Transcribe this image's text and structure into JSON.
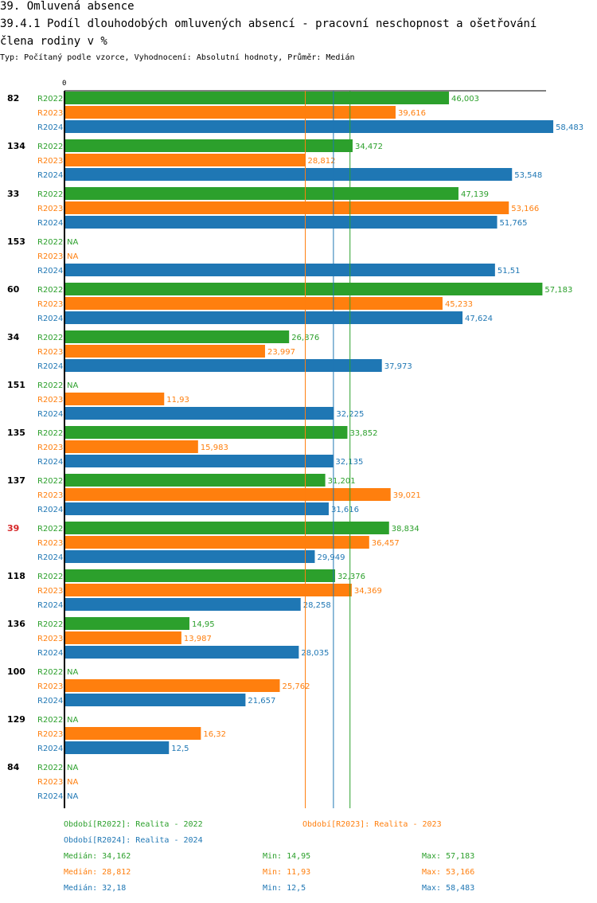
{
  "header": {
    "title1": "39. Omluvená absence",
    "title2": "39.4.1 Podíl dlouhodobých omluvených absencí - pracovní neschopnost a ošetřování",
    "title3": "člena rodiny v %",
    "subtitle": "Typ: Počítaný podle vzorce, Vyhodnocení: Absolutní hodnoty, Průměr: Medián"
  },
  "colors": {
    "R2022": "#2ca02c",
    "R2023": "#ff7f0e",
    "R2024": "#1f77b4",
    "highlight": "#d62728"
  },
  "chart_data": {
    "type": "bar",
    "orientation": "horizontal",
    "axis_zero_label": "0",
    "xlim": [
      0,
      58.483
    ],
    "series_names": [
      "R2022",
      "R2023",
      "R2024"
    ],
    "highlight_category": "39",
    "groups": [
      {
        "label": "82",
        "values": [
          "46,003",
          "39,616",
          "58,483"
        ]
      },
      {
        "label": "134",
        "values": [
          "34,472",
          "28,812",
          "53,548"
        ]
      },
      {
        "label": "33",
        "values": [
          "47,139",
          "53,166",
          "51,765"
        ]
      },
      {
        "label": "153",
        "values": [
          "NA",
          "NA",
          "51,51"
        ]
      },
      {
        "label": "60",
        "values": [
          "57,183",
          "45,233",
          "47,624"
        ]
      },
      {
        "label": "34",
        "values": [
          "26,876",
          "23,997",
          "37,973"
        ]
      },
      {
        "label": "151",
        "values": [
          "NA",
          "11,93",
          "32,225"
        ]
      },
      {
        "label": "135",
        "values": [
          "33,852",
          "15,983",
          "32,135"
        ]
      },
      {
        "label": "137",
        "values": [
          "31,201",
          "39,021",
          "31,616"
        ]
      },
      {
        "label": "39",
        "values": [
          "38,834",
          "36,457",
          "29,949"
        ]
      },
      {
        "label": "118",
        "values": [
          "32,376",
          "34,369",
          "28,258"
        ]
      },
      {
        "label": "136",
        "values": [
          "14,95",
          "13,987",
          "28,035"
        ]
      },
      {
        "label": "100",
        "values": [
          "NA",
          "25,762",
          "21,657"
        ]
      },
      {
        "label": "129",
        "values": [
          "NA",
          "16,32",
          "12,5"
        ]
      },
      {
        "label": "84",
        "values": [
          "NA",
          "NA",
          "NA"
        ]
      }
    ],
    "median_lines": {
      "R2022": 34.162,
      "R2023": 28.812,
      "R2024": 32.18
    }
  },
  "legend": {
    "r2022": "Období[R2022]: Realita - 2022",
    "r2023": "Období[R2023]: Realita - 2023",
    "r2024": "Období[R2024]: Realita - 2024"
  },
  "stats": {
    "r2022": {
      "median": "Medián: 34,162",
      "min": "Min: 14,95",
      "max": "Max: 57,183"
    },
    "r2023": {
      "median": "Medián: 28,812",
      "min": "Min: 11,93",
      "max": "Max: 53,166"
    },
    "r2024": {
      "median": "Medián: 32,18",
      "min": "Min: 12,5",
      "max": "Max: 58,483"
    }
  }
}
